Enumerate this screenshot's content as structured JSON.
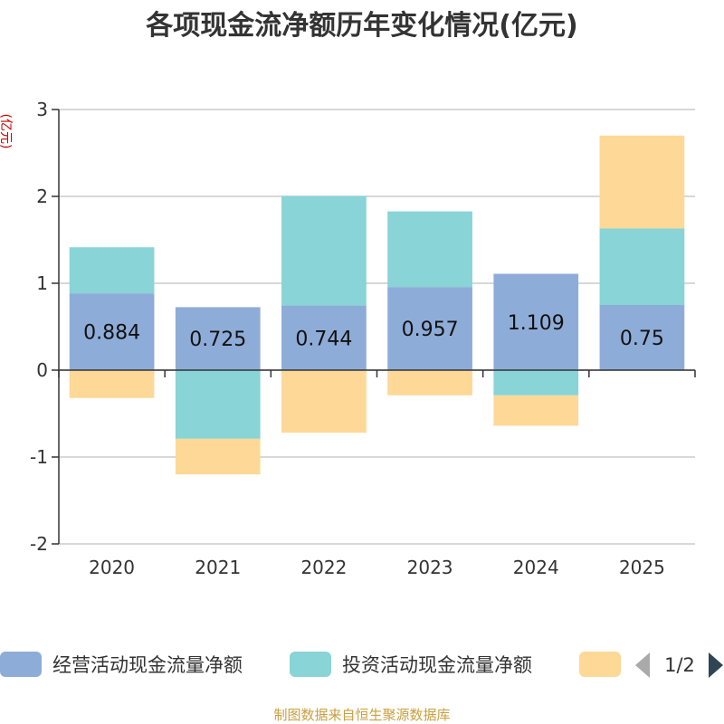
{
  "chart_data": {
    "type": "bar",
    "stacked": true,
    "title": "各项现金流净额历年变化情况(亿元)",
    "ylabel": "(亿元)",
    "xlabel": "",
    "categories": [
      "2020",
      "2021",
      "2022",
      "2023",
      "2024",
      "2025"
    ],
    "ylim": [
      -2,
      3
    ],
    "yticks": [
      -2,
      -1,
      0,
      1,
      2,
      3
    ],
    "grid": true,
    "series": [
      {
        "name": "经营活动现金流量净额",
        "color": "#8eacd8",
        "values": [
          0.884,
          0.725,
          0.744,
          0.957,
          1.109,
          0.75
        ],
        "labels": [
          "0.884",
          "0.725",
          "0.744",
          "0.957",
          "1.109",
          "0.75"
        ]
      },
      {
        "name": "投资活动现金流量净额",
        "color": "#88d4d6",
        "values": [
          0.53,
          -0.79,
          1.26,
          0.87,
          -0.29,
          0.88
        ]
      },
      {
        "name": "",
        "color": "#fdd897",
        "values": [
          -0.32,
          -0.41,
          -0.72,
          -0.29,
          -0.35,
          1.07
        ]
      }
    ],
    "legend": {
      "placement": "bottom",
      "page": "1/2"
    },
    "source": "制图数据来自恒生聚源数据库"
  }
}
